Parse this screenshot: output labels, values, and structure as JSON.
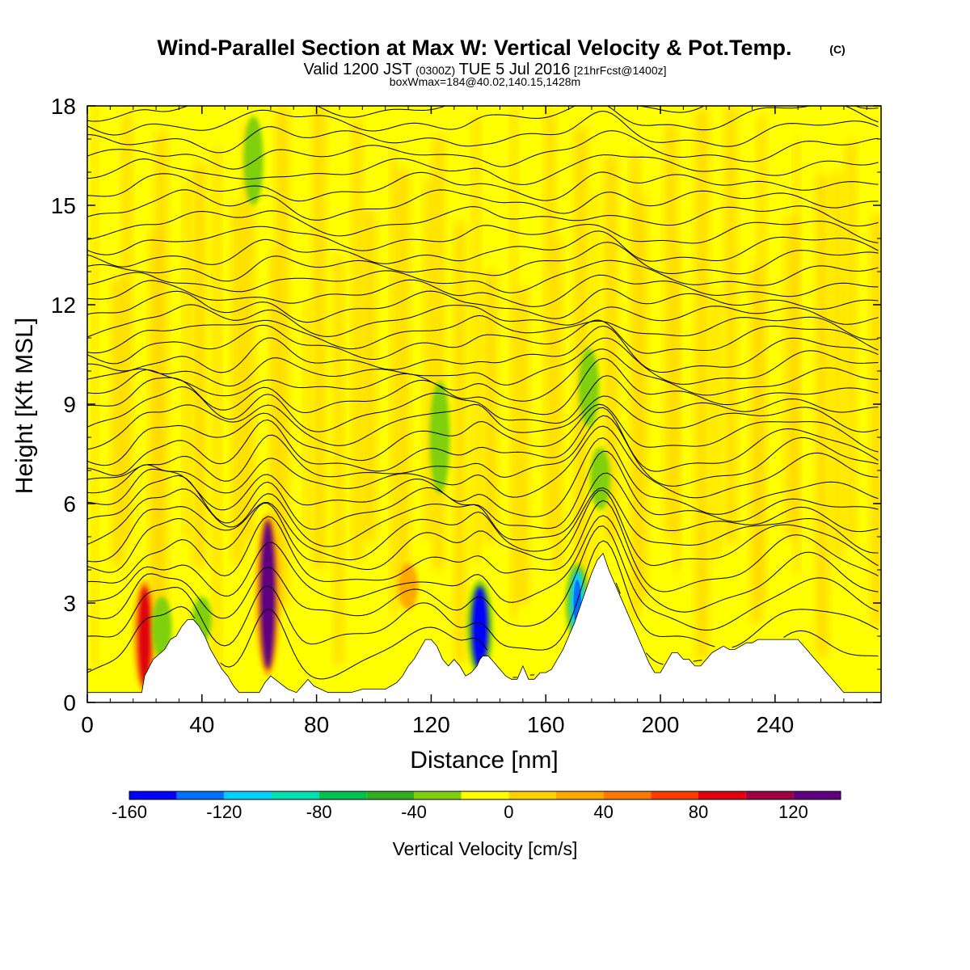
{
  "title": {
    "main": "Wind-Parallel Section at Max W: Vertical Velocity & Pot.Temp.",
    "copyright": "(C)"
  },
  "subtitle": {
    "valid_prefix": "Valid 1200 JST",
    "utc": "(0300Z)",
    "date": "TUE 5 Jul 2016",
    "forecast": "[21hrFcst@1400z]",
    "box_info": "boxWmax=184@40.02,140.15,1428m"
  },
  "chart_data": {
    "type": "heatmap",
    "title": "Wind-Parallel Section at Max W: Vertical Velocity & Pot.Temp.",
    "xlabel": "Distance [nm]",
    "ylabel": "Height [Kft MSL]",
    "xlim": [
      0,
      277
    ],
    "ylim": [
      0,
      18
    ],
    "x_ticks": [
      0,
      40,
      80,
      120,
      160,
      200,
      240
    ],
    "x_tick_labels": [
      "0",
      "40",
      "80",
      "120",
      "160",
      "200",
      "240"
    ],
    "y_ticks": [
      0,
      3,
      6,
      9,
      12,
      15,
      18
    ],
    "y_tick_labels": [
      "0",
      "3",
      "6",
      "9",
      "12",
      "15",
      "18"
    ],
    "grid": false,
    "background_color": "#ffff00",
    "colorbar": {
      "label": "Vertical Velocity [cm/s]",
      "bounds": [
        -160,
        -140,
        -120,
        -100,
        -80,
        -60,
        -40,
        -20,
        0,
        20,
        40,
        60,
        80,
        100,
        120,
        140
      ],
      "colors": [
        "#0000ff",
        "#0070ff",
        "#00d0ff",
        "#00e0b0",
        "#00c050",
        "#30b020",
        "#80d010",
        "#ffff00",
        "#ffd000",
        "#ffa800",
        "#ff7800",
        "#ff3c00",
        "#e00010",
        "#a00040",
        "#600080"
      ],
      "tick_values": [
        -160,
        -120,
        -80,
        -40,
        0,
        40,
        80,
        120
      ],
      "tick_labels": [
        "-160",
        "-120",
        "-80",
        "-40",
        "0",
        "40",
        "80",
        "120"
      ]
    },
    "terrain": {
      "description": "terrain height (Kft MSL) along section",
      "x": [
        0,
        4,
        8,
        12,
        16,
        19,
        20,
        23,
        27,
        29,
        31,
        33,
        35,
        37,
        39,
        41,
        43,
        45,
        47,
        49,
        51,
        53,
        56,
        60,
        62,
        64,
        67,
        70,
        73,
        75,
        77,
        79,
        84,
        88,
        92,
        96,
        100,
        104,
        108,
        110,
        112,
        114,
        116,
        118,
        120,
        122,
        124,
        126,
        128,
        130,
        132,
        134,
        136,
        137,
        138,
        140,
        142,
        144,
        146,
        148,
        150,
        152,
        154,
        156,
        158,
        160,
        162,
        164,
        166,
        168,
        170,
        172,
        174,
        176,
        178,
        180,
        182,
        184,
        186,
        188,
        190,
        192,
        194,
        196,
        198,
        200,
        202,
        204,
        206,
        208,
        210,
        212,
        214,
        216,
        218,
        220,
        222,
        224,
        226,
        228,
        230,
        232,
        234,
        236,
        238,
        240,
        242,
        244,
        246,
        248,
        250,
        252,
        254,
        256,
        258,
        260,
        262,
        264,
        266,
        268,
        270,
        272,
        274,
        277
      ],
      "y": [
        0.3,
        0.3,
        0.3,
        0.3,
        0.3,
        0.3,
        0.8,
        1.3,
        1.6,
        1.9,
        2.0,
        2.3,
        2.5,
        2.5,
        2.3,
        2.0,
        1.6,
        1.3,
        1.0,
        0.8,
        0.5,
        0.3,
        0.3,
        0.3,
        0.6,
        0.8,
        0.6,
        0.4,
        0.3,
        0.5,
        0.7,
        0.5,
        0.3,
        0.3,
        0.3,
        0.4,
        0.4,
        0.4,
        0.6,
        0.8,
        1.1,
        1.3,
        1.6,
        1.9,
        1.9,
        1.7,
        1.3,
        1.1,
        1.3,
        1.1,
        0.8,
        0.9,
        1.1,
        1.3,
        1.4,
        1.4,
        1.2,
        1.0,
        0.8,
        0.7,
        0.7,
        1.1,
        0.7,
        0.7,
        0.9,
        0.9,
        1.0,
        1.3,
        1.6,
        2.0,
        2.4,
        2.9,
        3.4,
        3.9,
        4.3,
        4.5,
        4.0,
        3.6,
        3.2,
        2.8,
        2.4,
        2.0,
        1.6,
        1.2,
        0.9,
        0.9,
        1.2,
        1.5,
        1.5,
        1.3,
        1.3,
        1.1,
        1.1,
        1.3,
        1.5,
        1.6,
        1.7,
        1.6,
        1.6,
        1.7,
        1.8,
        1.8,
        1.9,
        1.9,
        1.9,
        1.9,
        1.9,
        1.9,
        1.9,
        1.9,
        1.7,
        1.5,
        1.3,
        1.1,
        0.9,
        0.7,
        0.5,
        0.3,
        0.3,
        0.3,
        0.3,
        0.3,
        0.3,
        0.3
      ]
    },
    "vertical_velocity_features": [
      {
        "x": 63,
        "y_range": [
          1.0,
          5.5
        ],
        "w_cms": 130
      },
      {
        "x": 20,
        "y_range": [
          0.5,
          3.5
        ],
        "w_cms": 90
      },
      {
        "x": 137,
        "y_range": [
          1.0,
          3.5
        ],
        "w_cms": -150
      },
      {
        "x": 171,
        "y_range": [
          2.0,
          4.0
        ],
        "w_cms": -110
      },
      {
        "x": 123,
        "y_range": [
          6.5,
          9.5
        ],
        "w_cms": -40
      },
      {
        "x": 175,
        "y_range": [
          8.5,
          10.5
        ],
        "w_cms": -40
      },
      {
        "x": 179,
        "y_range": [
          6.0,
          7.5
        ],
        "w_cms": -40
      },
      {
        "x": 58,
        "y_range": [
          15.2,
          17.5
        ],
        "w_cms": -30
      },
      {
        "x": 26,
        "y_range": [
          1.5,
          3.0
        ],
        "w_cms": -40
      },
      {
        "x": 40,
        "y_range": [
          2.0,
          3.0
        ],
        "w_cms": -30
      },
      {
        "x": 112,
        "y_range": [
          3.0,
          4.0
        ],
        "w_cms": 30
      }
    ],
    "potential_temperature_contours": {
      "description": "isentropes (black lines), approximate base heights (Kft MSL) at x=0",
      "base_heights": [
        0.9,
        1.7,
        2.4,
        3.0,
        3.6,
        4.2,
        4.6,
        5.0,
        5.4,
        5.8,
        6.2,
        6.6,
        7.0,
        7.5,
        8.0,
        8.4,
        8.8,
        9.2,
        9.6,
        10.0,
        10.5,
        10.9,
        11.3,
        11.7,
        12.1,
        12.5,
        12.9,
        13.3,
        13.8,
        14.3,
        14.8,
        15.3,
        15.8,
        16.3,
        16.8,
        17.3,
        17.8
      ]
    }
  }
}
